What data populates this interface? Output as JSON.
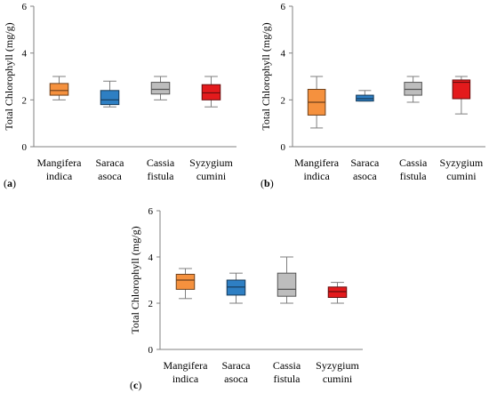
{
  "chart_data": [
    {
      "type": "box",
      "panel_label": "(a)",
      "ylabel": "Total Chlorophyll (mg/g)",
      "ylim": [
        0,
        6
      ],
      "yticks": [
        0,
        2,
        4,
        6
      ],
      "grid": false,
      "categories": [
        {
          "line1": "Mangifera",
          "line2": "indica"
        },
        {
          "line1": "Saraca",
          "line2": "asoca"
        },
        {
          "line1": "Cassia",
          "line2": "fistula"
        },
        {
          "line1": "Syzygium",
          "line2": "cumini"
        }
      ],
      "colors": [
        "#F5913E",
        "#2E7FC3",
        "#BDBDBD",
        "#E31A1C"
      ],
      "boxes": [
        {
          "min": 2.0,
          "q1": 2.2,
          "median": 2.4,
          "q3": 2.7,
          "max": 3.0
        },
        {
          "min": 1.7,
          "q1": 1.8,
          "median": 2.0,
          "q3": 2.4,
          "max": 2.8
        },
        {
          "min": 2.0,
          "q1": 2.25,
          "median": 2.45,
          "q3": 2.75,
          "max": 3.0
        },
        {
          "min": 1.7,
          "q1": 2.0,
          "median": 2.3,
          "q3": 2.65,
          "max": 3.0
        }
      ]
    },
    {
      "type": "box",
      "panel_label": "(b)",
      "ylabel": "Total Chlorophyll (mg/g)",
      "ylim": [
        0,
        6
      ],
      "yticks": [
        0,
        2,
        4,
        6
      ],
      "grid": false,
      "categories": [
        {
          "line1": "Mangifera",
          "line2": "indica"
        },
        {
          "line1": "Saraca",
          "line2": "asoca"
        },
        {
          "line1": "Cassia",
          "line2": "fistula"
        },
        {
          "line1": "Syzygium",
          "line2": "cumini"
        }
      ],
      "colors": [
        "#F5913E",
        "#2E7FC3",
        "#BDBDBD",
        "#E31A1C"
      ],
      "boxes": [
        {
          "min": 0.8,
          "q1": 1.35,
          "median": 1.9,
          "q3": 2.45,
          "max": 3.0
        },
        {
          "min": 1.95,
          "q1": 1.95,
          "median": 2.05,
          "q3": 2.2,
          "max": 2.4
        },
        {
          "min": 1.9,
          "q1": 2.2,
          "median": 2.45,
          "q3": 2.75,
          "max": 3.0
        },
        {
          "min": 1.4,
          "q1": 2.05,
          "median": 2.75,
          "q3": 2.85,
          "max": 3.0
        }
      ]
    },
    {
      "type": "box",
      "panel_label": "(c)",
      "ylabel": "Total Chlorophyll (mg/g)",
      "ylim": [
        0,
        6
      ],
      "yticks": [
        0,
        2,
        4,
        6
      ],
      "grid": false,
      "categories": [
        {
          "line1": "Mangifera",
          "line2": "indica"
        },
        {
          "line1": "Saraca",
          "line2": "asoca"
        },
        {
          "line1": "Cassia",
          "line2": "fistula"
        },
        {
          "line1": "Syzygium",
          "line2": "cumini"
        }
      ],
      "colors": [
        "#F5913E",
        "#2E7FC3",
        "#BDBDBD",
        "#E31A1C"
      ],
      "boxes": [
        {
          "min": 2.2,
          "q1": 2.6,
          "median": 3.0,
          "q3": 3.25,
          "max": 3.5
        },
        {
          "min": 2.0,
          "q1": 2.35,
          "median": 2.7,
          "q3": 3.0,
          "max": 3.3
        },
        {
          "min": 2.0,
          "q1": 2.3,
          "median": 2.6,
          "q3": 3.3,
          "max": 4.0
        },
        {
          "min": 2.0,
          "q1": 2.25,
          "median": 2.5,
          "q3": 2.7,
          "max": 2.9
        }
      ]
    }
  ]
}
